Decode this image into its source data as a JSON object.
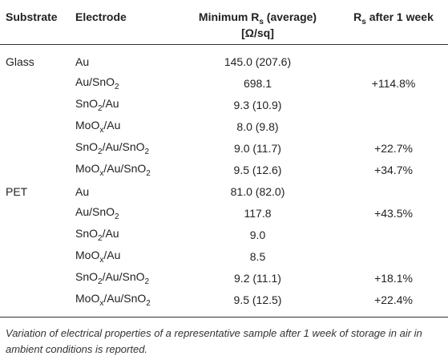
{
  "headers": {
    "substrate": "Substrate",
    "electrode": "Electrode",
    "min_rs_line1_pre": "Minimum R",
    "min_rs_line1_sub": "s",
    "min_rs_line1_post": " (average)",
    "min_rs_line2": "[Ω/sq]",
    "rs_week_pre": "R",
    "rs_week_sub": "s",
    "rs_week_post": " after 1 week"
  },
  "rows": [
    {
      "substrate": "Glass",
      "electrode": [
        "Au"
      ],
      "min_rs": "145.0 (207.6)",
      "rs_week": ""
    },
    {
      "substrate": "",
      "electrode": [
        "Au/SnO",
        "2",
        ""
      ],
      "min_rs": "698.1",
      "rs_week": "+114.8%"
    },
    {
      "substrate": "",
      "electrode": [
        "SnO",
        "2",
        "/Au"
      ],
      "min_rs": "9.3 (10.9)",
      "rs_week": ""
    },
    {
      "substrate": "",
      "electrode": [
        "MoO",
        "x",
        "/Au"
      ],
      "min_rs": "8.0 (9.8)",
      "rs_week": ""
    },
    {
      "substrate": "",
      "electrode": [
        "SnO",
        "2",
        "/Au/SnO",
        "2",
        ""
      ],
      "min_rs": "9.0 (11.7)",
      "rs_week": "+22.7%"
    },
    {
      "substrate": "",
      "electrode": [
        "MoO",
        "x",
        "/Au/SnO",
        "2",
        ""
      ],
      "min_rs": "9.5 (12.6)",
      "rs_week": "+34.7%"
    },
    {
      "substrate": "PET",
      "electrode": [
        "Au"
      ],
      "min_rs": "81.0 (82.0)",
      "rs_week": ""
    },
    {
      "substrate": "",
      "electrode": [
        "Au/SnO",
        "2",
        ""
      ],
      "min_rs": "117.8",
      "rs_week": "+43.5%"
    },
    {
      "substrate": "",
      "electrode": [
        "SnO",
        "2",
        "/Au"
      ],
      "min_rs": "9.0",
      "rs_week": ""
    },
    {
      "substrate": "",
      "electrode": [
        "MoO",
        "x",
        "/Au"
      ],
      "min_rs": "8.5",
      "rs_week": ""
    },
    {
      "substrate": "",
      "electrode": [
        "SnO",
        "2",
        "/Au/SnO",
        "2",
        ""
      ],
      "min_rs": "9.2 (11.1)",
      "rs_week": "+18.1%"
    },
    {
      "substrate": "",
      "electrode": [
        "MoO",
        "x",
        "/Au/SnO",
        "2",
        ""
      ],
      "min_rs": "9.5 (12.5)",
      "rs_week": "+22.4%"
    }
  ],
  "caption": "Variation of electrical properties of a representative sample after 1 week of storage in air in ambient conditions is reported."
}
